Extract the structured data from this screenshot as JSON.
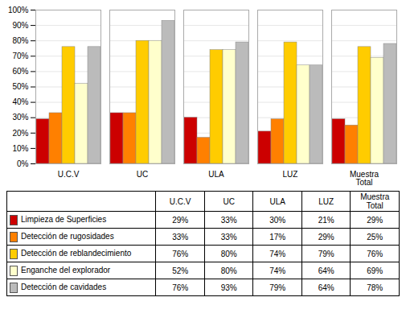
{
  "chart_data": {
    "type": "bar",
    "categories": [
      "U.C.V",
      "UC",
      "ULA",
      "LUZ",
      "Muestra\nTotal"
    ],
    "series": [
      {
        "name": "Limpieza de Superficies",
        "color": "#CC0000",
        "values": [
          29,
          33,
          30,
          21,
          29
        ],
        "value_labels": [
          "29%",
          "33%",
          "30%",
          "21%",
          "29%"
        ]
      },
      {
        "name": "Detección de rugosidades",
        "color": "#FF8000",
        "values": [
          33,
          33,
          17,
          29,
          25
        ],
        "value_labels": [
          "33%",
          "33%",
          "17%",
          "29%",
          "25%"
        ]
      },
      {
        "name": "Detección de reblandecimiento",
        "color": "#FFCC00",
        "values": [
          76,
          80,
          74,
          79,
          76
        ],
        "value_labels": [
          "76%",
          "80%",
          "74%",
          "79%",
          "76%"
        ]
      },
      {
        "name": "Enganche del explorador",
        "color": "#FFFFCC",
        "values": [
          52,
          80,
          74,
          64,
          69
        ],
        "value_labels": [
          "52%",
          "80%",
          "74%",
          "64%",
          "69%"
        ]
      },
      {
        "name": "Detección de cavidades",
        "color": "#BBBBBB",
        "values": [
          76,
          93,
          79,
          64,
          78
        ],
        "value_labels": [
          "76%",
          "93%",
          "79%",
          "64%",
          "78%"
        ]
      }
    ],
    "ylim": [
      0,
      100
    ],
    "yticks": [
      {
        "value": 0,
        "label": "0%"
      },
      {
        "value": 10,
        "label": "10%"
      },
      {
        "value": 20,
        "label": "20%"
      },
      {
        "value": 30,
        "label": "30%"
      },
      {
        "value": 40,
        "label": "40%"
      },
      {
        "value": 50,
        "label": "50%"
      },
      {
        "value": 60,
        "label": "60%"
      },
      {
        "value": 70,
        "label": "70%"
      },
      {
        "value": 80,
        "label": "80%"
      },
      {
        "value": 90,
        "label": "90%"
      },
      {
        "value": 100,
        "label": "100%"
      }
    ],
    "grid": true
  }
}
